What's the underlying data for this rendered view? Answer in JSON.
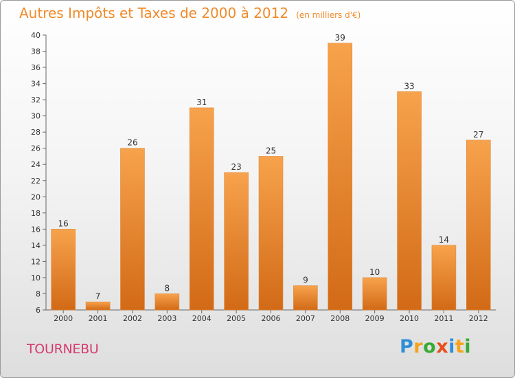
{
  "title": "Autres Impôts et Taxes de 2000 à 2012",
  "unit_note": "(en milliers d'€)",
  "commune": "TOURNEBU",
  "brand": "Proxiti",
  "colors": {
    "bar_light": "#f7a24c",
    "bar_dark": "#d26a17",
    "title": "#f08a2a",
    "commune": "#d63a6e"
  },
  "chart_data": {
    "type": "bar",
    "title": "Autres Impôts et Taxes de 2000 à 2012",
    "subtitle": "(en milliers d'€)",
    "xlabel": "",
    "ylabel": "",
    "categories": [
      "2000",
      "2001",
      "2002",
      "2003",
      "2004",
      "2005",
      "2006",
      "2007",
      "2008",
      "2009",
      "2010",
      "2011",
      "2012"
    ],
    "values": [
      16,
      7,
      26,
      8,
      31,
      23,
      25,
      9,
      39,
      10,
      33,
      14,
      27
    ],
    "ylim": [
      6,
      40
    ],
    "yticks": [
      6,
      8,
      10,
      12,
      14,
      16,
      18,
      20,
      22,
      24,
      26,
      28,
      30,
      32,
      34,
      36,
      38,
      40
    ],
    "grid": false,
    "data_labels": true
  }
}
